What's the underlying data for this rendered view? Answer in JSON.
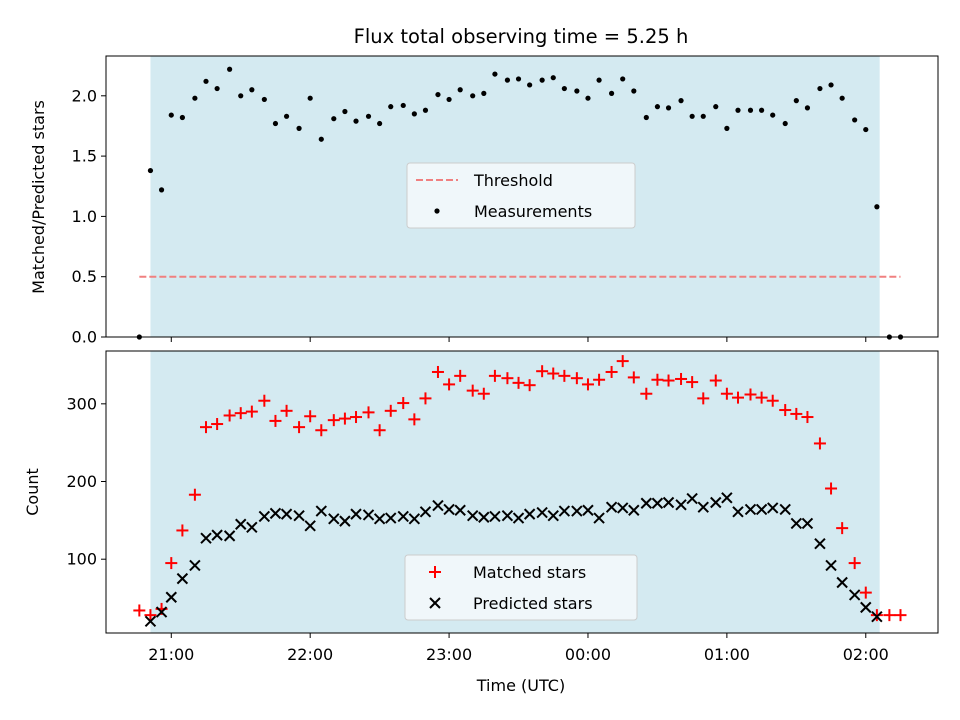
{
  "chart_data": {
    "title": "Flux total observing time = 5.25 h",
    "xlabel": "Time (UTC)",
    "x_ticks": [
      "21:00",
      "22:00",
      "23:00",
      "00:00",
      "01:00",
      "02:00"
    ],
    "x_tick_hours": [
      21,
      22,
      23,
      24,
      25,
      26
    ],
    "xlim_hours": [
      20.53,
      26.52
    ],
    "observing_window_hours": [
      20.85,
      26.1
    ],
    "window_color": "#d4eaf1",
    "panels": [
      {
        "type": "scatter",
        "ylabel": "Matched/Predicted stars",
        "ylim": [
          0,
          2.33
        ],
        "y_ticks": [
          0.0,
          0.5,
          1.0,
          1.5,
          2.0
        ],
        "y_tick_labels": [
          "0.0",
          "0.5",
          "1.0",
          "1.5",
          "2.0"
        ],
        "legend_position": "center",
        "threshold": {
          "name": "Threshold",
          "value": 0.5,
          "x_range": [
            20.77,
            26.25
          ],
          "color": "#f08080",
          "style": "dashed"
        },
        "series": [
          {
            "name": "Measurements",
            "color": "#000000",
            "marker": "dot",
            "x": [
              20.77,
              20.85,
              20.93,
              21.0,
              21.08,
              21.17,
              21.25,
              21.33,
              21.42,
              21.5,
              21.58,
              21.67,
              21.75,
              21.83,
              21.92,
              22.0,
              22.08,
              22.17,
              22.25,
              22.33,
              22.42,
              22.5,
              22.58,
              22.67,
              22.75,
              22.83,
              22.92,
              23.0,
              23.08,
              23.17,
              23.25,
              23.33,
              23.42,
              23.5,
              23.58,
              23.67,
              23.75,
              23.83,
              23.92,
              24.0,
              24.08,
              24.17,
              24.25,
              24.33,
              24.42,
              24.5,
              24.58,
              24.67,
              24.75,
              24.83,
              24.92,
              25.0,
              25.08,
              25.17,
              25.25,
              25.33,
              25.42,
              25.5,
              25.58,
              25.67,
              25.75,
              25.83,
              25.92,
              26.0,
              26.08,
              26.17,
              26.25
            ],
            "y": [
              0.0,
              1.38,
              1.22,
              1.84,
              1.82,
              1.98,
              2.12,
              2.06,
              2.22,
              2.0,
              2.05,
              1.97,
              1.77,
              1.83,
              1.73,
              1.98,
              1.64,
              1.81,
              1.87,
              1.79,
              1.83,
              1.77,
              1.91,
              1.92,
              1.85,
              1.88,
              2.01,
              1.97,
              2.05,
              2.0,
              2.02,
              2.18,
              2.13,
              2.14,
              2.09,
              2.13,
              2.15,
              2.06,
              2.04,
              1.98,
              2.13,
              2.02,
              2.14,
              2.04,
              1.82,
              1.91,
              1.9,
              1.96,
              1.83,
              1.83,
              1.91,
              1.73,
              1.88,
              1.88,
              1.88,
              1.84,
              1.77,
              1.96,
              1.9,
              2.06,
              2.09,
              1.98,
              1.8,
              1.72,
              1.08,
              0.0,
              0.0
            ]
          }
        ]
      },
      {
        "type": "scatter",
        "ylabel": "Count",
        "ylim": [
          5,
          368
        ],
        "y_ticks": [
          100,
          200,
          300
        ],
        "y_tick_labels": [
          "100",
          "200",
          "300"
        ],
        "legend_position": "lower center",
        "series": [
          {
            "name": "Matched stars",
            "color": "#ff0000",
            "marker": "plus",
            "x": [
              20.77,
              20.85,
              20.93,
              21.0,
              21.08,
              21.17,
              21.25,
              21.33,
              21.42,
              21.5,
              21.58,
              21.67,
              21.75,
              21.83,
              21.92,
              22.0,
              22.08,
              22.17,
              22.25,
              22.33,
              22.42,
              22.5,
              22.58,
              22.67,
              22.75,
              22.83,
              22.92,
              23.0,
              23.08,
              23.17,
              23.25,
              23.33,
              23.42,
              23.5,
              23.58,
              23.67,
              23.75,
              23.83,
              23.92,
              24.0,
              24.08,
              24.17,
              24.25,
              24.33,
              24.42,
              24.5,
              24.58,
              24.67,
              24.75,
              24.83,
              24.92,
              25.0,
              25.08,
              25.17,
              25.25,
              25.33,
              25.42,
              25.5,
              25.58,
              25.67,
              25.75,
              25.83,
              25.92,
              26.0,
              26.08,
              26.17,
              26.25
            ],
            "y": [
              34,
              28,
              36,
              95,
              137,
              183,
              270,
              274,
              285,
              288,
              290,
              304,
              278,
              291,
              270,
              284,
              266,
              279,
              281,
              283,
              289,
              266,
              291,
              301,
              280,
              307,
              341,
              325,
              336,
              317,
              313,
              336,
              333,
              327,
              324,
              342,
              339,
              336,
              333,
              325,
              331,
              341,
              355,
              334,
              313,
              331,
              330,
              332,
              328,
              307,
              330,
              313,
              308,
              312,
              308,
              304,
              292,
              287,
              283,
              249,
              191,
              140,
              95,
              57,
              28,
              28,
              28
            ]
          },
          {
            "name": "Predicted stars",
            "color": "#000000",
            "marker": "cross",
            "x": [
              20.85,
              20.93,
              21.0,
              21.08,
              21.17,
              21.25,
              21.33,
              21.42,
              21.5,
              21.58,
              21.67,
              21.75,
              21.83,
              21.92,
              22.0,
              22.08,
              22.17,
              22.25,
              22.33,
              22.42,
              22.5,
              22.58,
              22.67,
              22.75,
              22.83,
              22.92,
              23.0,
              23.08,
              23.17,
              23.25,
              23.33,
              23.42,
              23.5,
              23.58,
              23.67,
              23.75,
              23.83,
              23.92,
              24.0,
              24.08,
              24.17,
              24.25,
              24.33,
              24.42,
              24.5,
              24.58,
              24.67,
              24.75,
              24.83,
              24.92,
              25.0,
              25.08,
              25.17,
              25.25,
              25.33,
              25.42,
              25.5,
              25.58,
              25.67,
              25.75,
              25.83,
              25.92,
              26.0,
              26.08
            ],
            "y": [
              20,
              32,
              51,
              75,
              92,
              127,
              131,
              130,
              145,
              141,
              155,
              159,
              158,
              156,
              143,
              162,
              152,
              149,
              158,
              157,
              152,
              153,
              155,
              152,
              161,
              169,
              164,
              163,
              156,
              154,
              155,
              156,
              153,
              158,
              160,
              156,
              162,
              162,
              163,
              153,
              167,
              166,
              163,
              172,
              172,
              173,
              170,
              178,
              167,
              173,
              179,
              161,
              164,
              164,
              166,
              164,
              146,
              146,
              120,
              92,
              70,
              54,
              38,
              26
            ]
          }
        ]
      }
    ]
  }
}
